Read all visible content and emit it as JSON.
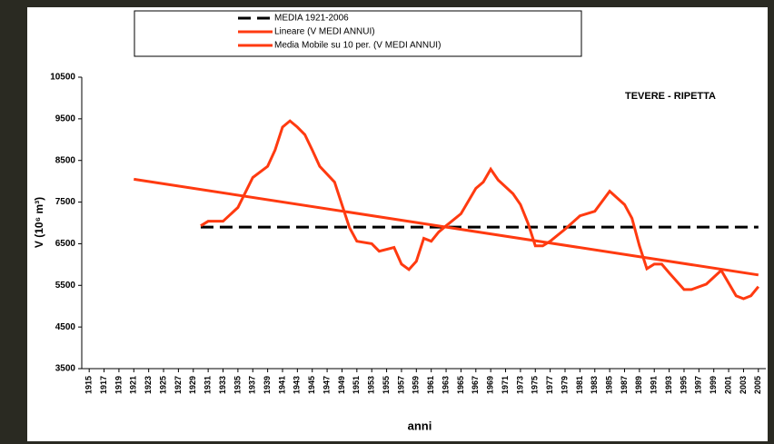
{
  "chart_data": {
    "type": "line",
    "annotation": "TEVERE - RIPETTA",
    "xlabel": "anni",
    "ylabel": "V (10⁶ m³)",
    "xlim": [
      1914,
      2006
    ],
    "ylim": [
      3500,
      10500
    ],
    "yticks": [
      3500,
      4500,
      5500,
      6500,
      7500,
      8500,
      9500,
      10500
    ],
    "xticks": [
      1915,
      1917,
      1919,
      1921,
      1923,
      1925,
      1927,
      1929,
      1931,
      1933,
      1935,
      1937,
      1939,
      1941,
      1943,
      1945,
      1947,
      1949,
      1951,
      1953,
      1955,
      1957,
      1959,
      1961,
      1963,
      1965,
      1967,
      1969,
      1971,
      1973,
      1975,
      1977,
      1979,
      1981,
      1983,
      1985,
      1987,
      1989,
      1991,
      1993,
      1995,
      1997,
      1999,
      2001,
      2003,
      2005
    ],
    "grid": false,
    "legend": "top",
    "series": [
      {
        "name": "MEDIA 1921-2006",
        "color": "#000000",
        "line_style": "dashed",
        "x": [
          1930,
          2005
        ],
        "values": [
          6900,
          6900
        ]
      },
      {
        "name": "Lineare (V MEDI ANNUI)",
        "color": "#ff3a10",
        "line_style": "solid",
        "x": [
          1921,
          2005
        ],
        "values": [
          8050,
          5750
        ]
      },
      {
        "name": "Media Mobile su 10 per. (V MEDI ANNUI)",
        "color": "#ff3a10",
        "line_style": "solid",
        "x": [
          1930,
          1931,
          1933,
          1935,
          1937,
          1939,
          1940,
          1941,
          1942,
          1943,
          1944,
          1945,
          1946,
          1948,
          1950,
          1951,
          1953,
          1954,
          1956,
          1957,
          1958,
          1959,
          1960,
          1961,
          1962,
          1963,
          1965,
          1967,
          1968,
          1969,
          1970,
          1972,
          1973,
          1974,
          1975,
          1976,
          1977,
          1979,
          1981,
          1983,
          1985,
          1987,
          1988,
          1989,
          1990,
          1991,
          1992,
          1993,
          1995,
          1996,
          1998,
          2000,
          2002,
          2003,
          2004,
          2005
        ],
        "values": [
          6930,
          7040,
          7040,
          7370,
          8090,
          8360,
          8750,
          9300,
          9450,
          9300,
          9120,
          8750,
          8360,
          7980,
          6890,
          6560,
          6500,
          6320,
          6410,
          6010,
          5880,
          6080,
          6630,
          6560,
          6780,
          6930,
          7220,
          7830,
          7980,
          8290,
          8030,
          7700,
          7440,
          7000,
          6450,
          6450,
          6560,
          6850,
          7170,
          7280,
          7760,
          7440,
          7110,
          6450,
          5900,
          6010,
          6010,
          5800,
          5400,
          5400,
          5530,
          5860,
          5250,
          5180,
          5250,
          5470
        ]
      }
    ]
  }
}
